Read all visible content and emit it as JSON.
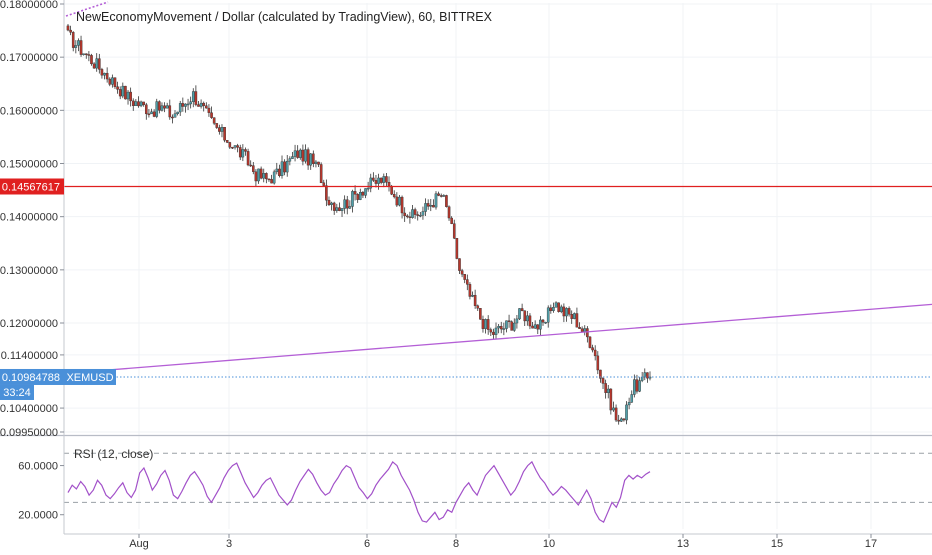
{
  "chart_data": [
    {
      "type": "candlestick",
      "title": "NewEconomyMovement / Dollar (calculated by TradingView), 60, BITTREX",
      "symbol": "XEMUSD",
      "y_ticks": [
        {
          "value": 0.18,
          "label": "0.18000000"
        },
        {
          "value": 0.17,
          "label": "0.17000000"
        },
        {
          "value": 0.16,
          "label": "0.16000000"
        },
        {
          "value": 0.15,
          "label": "0.15000000"
        },
        {
          "value": 0.14,
          "label": "0.14000000"
        },
        {
          "value": 0.13,
          "label": "0.13000000"
        },
        {
          "value": 0.12,
          "label": "0.12000000"
        },
        {
          "value": 0.114,
          "label": "0.11400000"
        },
        {
          "value": 0.104,
          "label": "0.10400000"
        },
        {
          "value": 0.0995,
          "label": "0.09950000"
        }
      ],
      "ylim": [
        0.0995,
        0.18
      ],
      "x_ticks": [
        "Aug",
        "3",
        "6",
        "8",
        "10",
        "13",
        "15",
        "17"
      ],
      "horizontal_line": {
        "value": 0.14567617,
        "label": "0.14567617",
        "color": "#e02020"
      },
      "last_price": {
        "value": 0.10984788,
        "label": "0.10984788",
        "symbol": "XEMUSD",
        "countdown": "33:24",
        "color": "#4a90d9"
      },
      "trend_line": {
        "start": 0.1105,
        "end": 0.1235,
        "color": "#b45fd6"
      },
      "candle_colors": {
        "up": "#4f9ea8",
        "down": "#b5362c",
        "wick": "#333333"
      },
      "close_path": [
        [
          0,
          0.174
        ],
        [
          4,
          0.172
        ],
        [
          8,
          0.17
        ],
        [
          12,
          0.168
        ],
        [
          16,
          0.166
        ],
        [
          20,
          0.164
        ],
        [
          24,
          0.162
        ],
        [
          28,
          0.161
        ],
        [
          32,
          0.16
        ],
        [
          36,
          0.1605
        ],
        [
          40,
          0.159
        ],
        [
          44,
          0.161
        ],
        [
          48,
          0.163
        ],
        [
          52,
          0.16
        ],
        [
          56,
          0.157
        ],
        [
          60,
          0.155
        ],
        [
          64,
          0.153
        ],
        [
          68,
          0.151
        ],
        [
          72,
          0.148
        ],
        [
          76,
          0.147
        ],
        [
          80,
          0.148
        ],
        [
          84,
          0.15
        ],
        [
          88,
          0.152
        ],
        [
          92,
          0.151
        ],
        [
          96,
          0.149
        ],
        [
          100,
          0.143
        ],
        [
          104,
          0.142
        ],
        [
          108,
          0.143
        ],
        [
          112,
          0.145
        ],
        [
          116,
          0.146
        ],
        [
          120,
          0.147
        ],
        [
          124,
          0.145
        ],
        [
          128,
          0.142
        ],
        [
          132,
          0.14
        ],
        [
          136,
          0.141
        ],
        [
          140,
          0.143
        ],
        [
          143,
          0.144
        ],
        [
          144,
          0.143
        ],
        [
          146,
          0.14
        ],
        [
          150,
          0.13
        ],
        [
          154,
          0.125
        ],
        [
          158,
          0.121
        ],
        [
          162,
          0.118
        ],
        [
          166,
          0.119
        ],
        [
          170,
          0.12
        ],
        [
          174,
          0.122
        ],
        [
          178,
          0.12
        ],
        [
          182,
          0.119
        ],
        [
          186,
          0.124
        ],
        [
          190,
          0.122
        ],
        [
          194,
          0.121
        ],
        [
          198,
          0.118
        ],
        [
          201,
          0.116
        ],
        [
          204,
          0.11
        ],
        [
          208,
          0.105
        ],
        [
          210,
          0.102
        ],
        [
          212,
          0.101
        ],
        [
          214,
          0.105
        ],
        [
          217,
          0.108
        ],
        [
          220,
          0.109
        ],
        [
          223,
          0.11
        ]
      ]
    },
    {
      "type": "line",
      "title": "RSI (12, close)",
      "series": [
        {
          "name": "RSI (12, close)",
          "color": "#a251c9"
        }
      ],
      "y_ticks": [
        {
          "value": 60,
          "label": "60.0000"
        },
        {
          "value": 20,
          "label": "20.0000"
        }
      ],
      "ylim": [
        10,
        80
      ],
      "bands": [
        {
          "value": 70
        },
        {
          "value": 30
        }
      ],
      "values": [
        38,
        44,
        41,
        47,
        43,
        36,
        40,
        48,
        44,
        36,
        33,
        37,
        42,
        46,
        38,
        34,
        40,
        54,
        58,
        50,
        40,
        45,
        52,
        56,
        48,
        36,
        33,
        39,
        46,
        52,
        55,
        50,
        44,
        35,
        30,
        36,
        42,
        50,
        56,
        60,
        62,
        54,
        46,
        40,
        34,
        38,
        44,
        48,
        50,
        43,
        36,
        32,
        28,
        32,
        40,
        47,
        52,
        57,
        53,
        46,
        40,
        36,
        38,
        45,
        50,
        56,
        60,
        58,
        50,
        42,
        38,
        33,
        37,
        44,
        49,
        53,
        57,
        63,
        60,
        52,
        46,
        40,
        32,
        22,
        15,
        14,
        18,
        22,
        16,
        18,
        24,
        22,
        30,
        36,
        42,
        46,
        40,
        36,
        44,
        52,
        56,
        60,
        54,
        48,
        42,
        36,
        40,
        47,
        55,
        60,
        63,
        56,
        50,
        46,
        40,
        36,
        39,
        43,
        40,
        36,
        32,
        28,
        34,
        40,
        33,
        22,
        16,
        14,
        22,
        30,
        26,
        34,
        48,
        52,
        49,
        52,
        50,
        53,
        55
      ]
    }
  ]
}
